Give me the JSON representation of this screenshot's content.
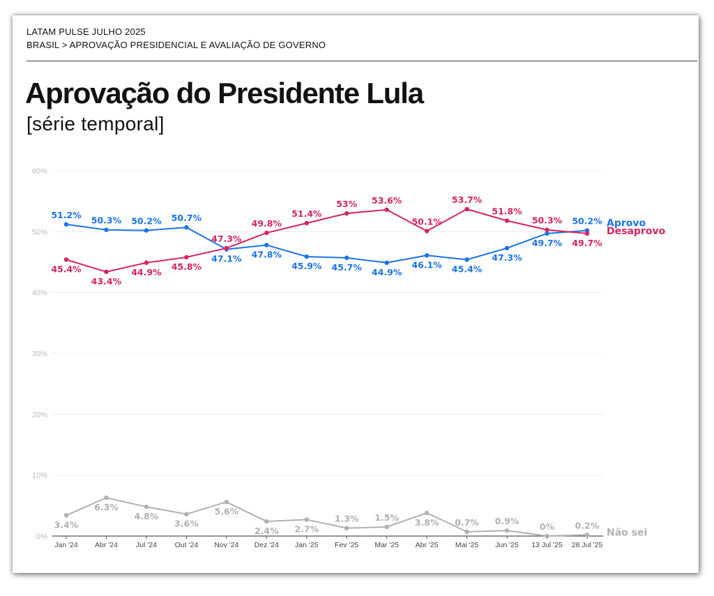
{
  "header": {
    "line1": "LATAM PULSE JULHO 2025",
    "line2": "BRASIL > APROVAÇÃO PRESIDENCIAL E AVALIAÇÃO DE GOVERNO"
  },
  "colors": {
    "aprovo": "#1a73e8",
    "desaprovo": "#d6245f",
    "naosei": "#b0b0b0",
    "grid": "#ececec",
    "axis": "#555555"
  },
  "chart_data": {
    "type": "line",
    "title": "Aprovação do Presidente Lula",
    "subtitle": "[série temporal]",
    "xlabel": "",
    "ylabel": "",
    "ylim": [
      0,
      60
    ],
    "yticks": [
      0,
      10,
      20,
      30,
      40,
      50,
      60
    ],
    "ytick_labels": [
      "0%",
      "10%",
      "20%",
      "30%",
      "40%",
      "50%",
      "60%"
    ],
    "grid": true,
    "categories": [
      "Jan '24",
      "Abr '24",
      "Jul '24",
      "Out '24",
      "Nov '24",
      "Dez '24",
      "Jan '25",
      "Fev '25",
      "Mar '25",
      "Abr '25",
      "Mai '25",
      "Jun '25",
      "13 Jul '25",
      "28 Jul '25"
    ],
    "series": [
      {
        "name": "Aprovo",
        "color_key": "aprovo",
        "values": [
          51.2,
          50.3,
          50.2,
          50.7,
          47.1,
          47.8,
          45.9,
          45.7,
          44.9,
          46.1,
          45.4,
          47.3,
          49.7,
          50.2
        ],
        "labels": [
          "51.2%",
          "50.3%",
          "50.2%",
          "50.7%",
          "47.1%",
          "47.8%",
          "45.9%",
          "45.7%",
          "44.9%",
          "46.1%",
          "45.4%",
          "47.3%",
          "49.7%",
          "50.2%"
        ],
        "label_pos": [
          "above",
          "above",
          "above",
          "above",
          "below",
          "below",
          "below",
          "below",
          "below",
          "below",
          "below",
          "below",
          "below",
          "above"
        ]
      },
      {
        "name": "Desaprovo",
        "color_key": "desaprovo",
        "values": [
          45.4,
          43.4,
          44.9,
          45.8,
          47.3,
          49.8,
          51.4,
          53.0,
          53.6,
          50.1,
          53.7,
          51.8,
          50.3,
          49.7
        ],
        "labels": [
          "45.4%",
          "43.4%",
          "44.9%",
          "45.8%",
          "47.3%",
          "49.8%",
          "51.4%",
          "53%",
          "53.6%",
          "50.1%",
          "53.7%",
          "51.8%",
          "50.3%",
          "49.7%"
        ],
        "label_pos": [
          "below",
          "below",
          "below",
          "below",
          "above",
          "above",
          "above",
          "above",
          "above",
          "above",
          "above",
          "above",
          "above",
          "below"
        ]
      },
      {
        "name": "Não sei",
        "color_key": "naosei",
        "values": [
          3.4,
          6.3,
          4.8,
          3.6,
          5.6,
          2.4,
          2.7,
          1.3,
          1.5,
          3.8,
          0.7,
          0.9,
          0.0,
          0.2
        ],
        "labels": [
          "3.4%",
          "6.3%",
          "4.8%",
          "3.6%",
          "5.6%",
          "2.4%",
          "2.7%",
          "1.3%",
          "1.5%",
          "3.8%",
          "0.7%",
          "0.9%",
          "0%",
          "0.2%"
        ],
        "label_pos": [
          "below",
          "below",
          "below",
          "below",
          "below",
          "below",
          "below",
          "above",
          "above",
          "below",
          "above",
          "above",
          "above",
          "above"
        ]
      }
    ]
  }
}
